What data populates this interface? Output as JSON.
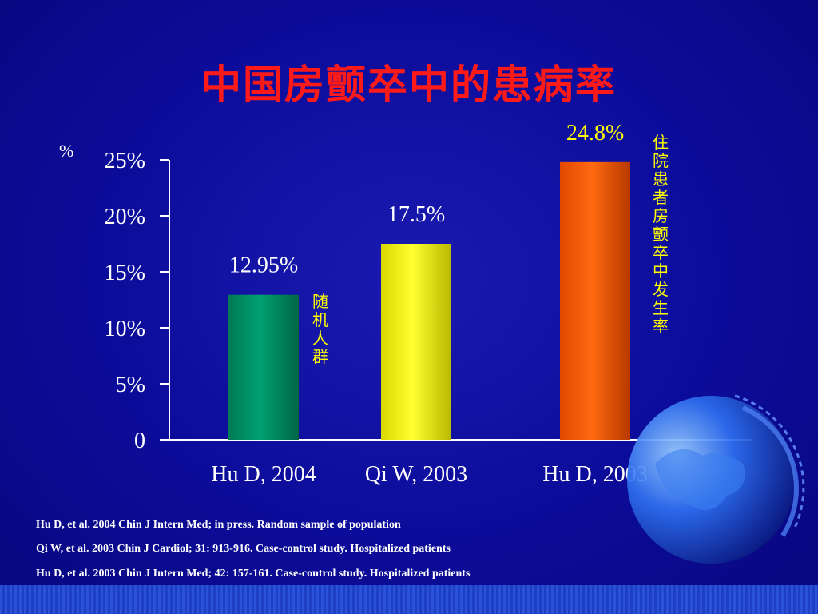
{
  "slide": {
    "title": "中国房颤卒中的患病率",
    "references": [
      "Hu D, et al. 2004 Chin J Intern Med; in press. Random sample of population",
      "Qi W, et al. 2003 Chin J Cardiol; 31: 913-916. Case-control study. Hospitalized patients",
      "Hu D, et al. 2003 Chin J Intern Med; 42: 157-161. Case-control study. Hospitalized patients"
    ]
  },
  "chart_data": {
    "type": "bar",
    "title": "",
    "ylabel": "%",
    "xlabel": "",
    "ylim": [
      0,
      25
    ],
    "yticks": [
      "0",
      "5%",
      "10%",
      "15%",
      "20%",
      "25%"
    ],
    "categories": [
      "Hu D, 2004",
      "Qi W, 2003",
      "Hu D, 2003"
    ],
    "values": [
      12.95,
      17.5,
      24.8
    ],
    "data_labels": [
      "12.95%",
      "17.5%",
      "24.8%"
    ],
    "bar_colors": [
      "#009966",
      "#ffff00",
      "#ff6600"
    ],
    "annotations": [
      {
        "text": "随机人群",
        "bar": 0
      },
      {
        "text": "住院患者房颤卒中发生率",
        "bar": 2
      }
    ],
    "grid": false
  }
}
